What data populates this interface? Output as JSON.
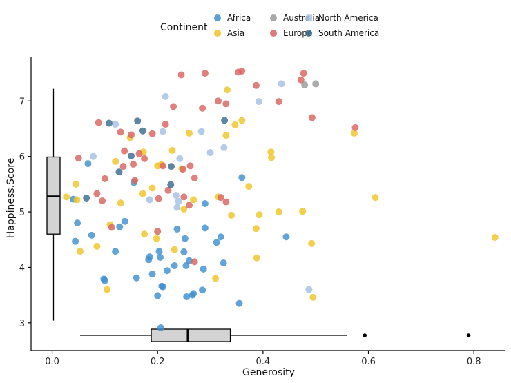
{
  "chart_data": {
    "type": "scatter",
    "title": "",
    "xlabel": "Generosity",
    "ylabel": "Happiness.Score",
    "xlim": [
      -0.04,
      0.86
    ],
    "ylim": [
      2.5,
      7.8
    ],
    "xticks": [
      0.0,
      0.2,
      0.4,
      0.6,
      0.8
    ],
    "xtick_labels": [
      "0.0",
      "0.2",
      "0.4",
      "0.6",
      "0.8"
    ],
    "yticks": [
      3,
      4,
      5,
      6,
      7
    ],
    "ytick_labels": [
      "3",
      "4",
      "5",
      "6",
      "7"
    ],
    "grid": false,
    "legend": {
      "title": "Continent",
      "placement": "top",
      "entries": [
        {
          "name": "Africa",
          "color": "#3F8FCF"
        },
        {
          "name": "Australia",
          "color": "#9A9A9A"
        },
        {
          "name": "North America",
          "color": "#A5C0E4"
        },
        {
          "name": "Asia",
          "color": "#EFC426"
        },
        {
          "name": "Europe",
          "color": "#D9645F"
        },
        {
          "name": "South America",
          "color": "#3B6A8E"
        }
      ]
    },
    "series": [
      {
        "name": "Africa",
        "color": "#3F8FCF",
        "points": [
          [
            0.04,
            5.23
          ],
          [
            0.044,
            4.47
          ],
          [
            0.048,
            4.8
          ],
          [
            0.068,
            5.87
          ],
          [
            0.075,
            4.58
          ],
          [
            0.098,
            3.79
          ],
          [
            0.1,
            3.76
          ],
          [
            0.12,
            4.29
          ],
          [
            0.128,
            4.73
          ],
          [
            0.138,
            4.83
          ],
          [
            0.155,
            5.53
          ],
          [
            0.16,
            3.81
          ],
          [
            0.183,
            4.14
          ],
          [
            0.185,
            4.19
          ],
          [
            0.19,
            3.88
          ],
          [
            0.2,
            3.49
          ],
          [
            0.203,
            4.29
          ],
          [
            0.205,
            4.18
          ],
          [
            0.206,
            2.91
          ],
          [
            0.208,
            3.66
          ],
          [
            0.21,
            3.65
          ],
          [
            0.218,
            3.94
          ],
          [
            0.232,
            4.03
          ],
          [
            0.237,
            4.69
          ],
          [
            0.25,
            4.28
          ],
          [
            0.252,
            4.52
          ],
          [
            0.254,
            4.03
          ],
          [
            0.255,
            3.47
          ],
          [
            0.26,
            4.12
          ],
          [
            0.266,
            3.5
          ],
          [
            0.268,
            3.53
          ],
          [
            0.285,
            3.59
          ],
          [
            0.287,
            3.97
          ],
          [
            0.29,
            5.15
          ],
          [
            0.29,
            4.71
          ],
          [
            0.312,
            4.45
          ],
          [
            0.32,
            4.55
          ],
          [
            0.325,
            4.08
          ],
          [
            0.355,
            3.35
          ],
          [
            0.36,
            5.62
          ],
          [
            0.444,
            4.55
          ]
        ]
      },
      {
        "name": "Australia",
        "color": "#9A9A9A",
        "points": [
          [
            0.479,
            7.29
          ],
          [
            0.5,
            7.31
          ]
        ]
      },
      {
        "name": "North America",
        "color": "#A5C0E4",
        "points": [
          [
            0.078,
            6.0
          ],
          [
            0.12,
            6.58
          ],
          [
            0.185,
            5.22
          ],
          [
            0.21,
            6.45
          ],
          [
            0.215,
            7.08
          ],
          [
            0.235,
            5.3
          ],
          [
            0.237,
            5.08
          ],
          [
            0.24,
            5.19
          ],
          [
            0.242,
            5.96
          ],
          [
            0.283,
            6.45
          ],
          [
            0.3,
            6.07
          ],
          [
            0.326,
            6.16
          ],
          [
            0.392,
            6.99
          ],
          [
            0.435,
            7.31
          ],
          [
            0.487,
            3.6
          ]
        ]
      },
      {
        "name": "Asia",
        "color": "#EFC426",
        "points": [
          [
            0.027,
            5.27
          ],
          [
            0.045,
            5.5
          ],
          [
            0.047,
            5.22
          ],
          [
            0.053,
            4.29
          ],
          [
            0.085,
            4.38
          ],
          [
            0.104,
            3.6
          ],
          [
            0.11,
            4.77
          ],
          [
            0.12,
            5.91
          ],
          [
            0.13,
            5.16
          ],
          [
            0.148,
            6.34
          ],
          [
            0.172,
            5.33
          ],
          [
            0.173,
            6.08
          ],
          [
            0.175,
            4.6
          ],
          [
            0.19,
            5.43
          ],
          [
            0.198,
            4.52
          ],
          [
            0.2,
            5.83
          ],
          [
            0.207,
            5.85
          ],
          [
            0.228,
            6.11
          ],
          [
            0.232,
            4.32
          ],
          [
            0.246,
            5.78
          ],
          [
            0.25,
            5.05
          ],
          [
            0.26,
            6.42
          ],
          [
            0.268,
            5.22
          ],
          [
            0.31,
            3.8
          ],
          [
            0.315,
            5.27
          ],
          [
            0.33,
            6.38
          ],
          [
            0.332,
            7.2
          ],
          [
            0.34,
            4.94
          ],
          [
            0.347,
            6.57
          ],
          [
            0.36,
            6.65
          ],
          [
            0.373,
            5.46
          ],
          [
            0.387,
            4.7
          ],
          [
            0.388,
            4.17
          ],
          [
            0.393,
            4.95
          ],
          [
            0.415,
            6.08
          ],
          [
            0.416,
            5.98
          ],
          [
            0.43,
            5.0
          ],
          [
            0.475,
            5.01
          ],
          [
            0.492,
            4.43
          ],
          [
            0.495,
            3.46
          ],
          [
            0.573,
            6.42
          ],
          [
            0.613,
            5.26
          ],
          [
            0.84,
            4.54
          ]
        ]
      },
      {
        "name": "Europe",
        "color": "#D9645F",
        "points": [
          [
            0.05,
            5.97
          ],
          [
            0.085,
            5.33
          ],
          [
            0.088,
            6.61
          ],
          [
            0.095,
            5.2
          ],
          [
            0.1,
            5.6
          ],
          [
            0.113,
            4.72
          ],
          [
            0.13,
            6.44
          ],
          [
            0.135,
            5.82
          ],
          [
            0.137,
            6.1
          ],
          [
            0.15,
            6.39
          ],
          [
            0.154,
            5.86
          ],
          [
            0.157,
            5.57
          ],
          [
            0.165,
            6.05
          ],
          [
            0.175,
            5.96
          ],
          [
            0.19,
            6.41
          ],
          [
            0.2,
            4.65
          ],
          [
            0.202,
            5.24
          ],
          [
            0.21,
            5.83
          ],
          [
            0.215,
            6.58
          ],
          [
            0.22,
            5.39
          ],
          [
            0.23,
            6.9
          ],
          [
            0.245,
            7.47
          ],
          [
            0.248,
            5.77
          ],
          [
            0.25,
            5.27
          ],
          [
            0.26,
            5.12
          ],
          [
            0.262,
            5.83
          ],
          [
            0.27,
            4.1
          ],
          [
            0.27,
            5.61
          ],
          [
            0.285,
            6.87
          ],
          [
            0.29,
            7.5
          ],
          [
            0.315,
            7.0
          ],
          [
            0.32,
            5.26
          ],
          [
            0.33,
            6.95
          ],
          [
            0.33,
            5.18
          ],
          [
            0.353,
            7.52
          ],
          [
            0.36,
            7.54
          ],
          [
            0.387,
            7.28
          ],
          [
            0.43,
            6.99
          ],
          [
            0.472,
            7.38
          ],
          [
            0.477,
            7.5
          ],
          [
            0.493,
            6.7
          ],
          [
            0.575,
            6.52
          ]
        ]
      },
      {
        "name": "South America",
        "color": "#3B6A8E",
        "points": [
          [
            0.065,
            5.25
          ],
          [
            0.108,
            6.6
          ],
          [
            0.127,
            5.72
          ],
          [
            0.15,
            6.01
          ],
          [
            0.162,
            6.64
          ],
          [
            0.172,
            6.46
          ],
          [
            0.225,
            5.49
          ],
          [
            0.226,
            5.82
          ],
          [
            0.327,
            6.65
          ]
        ]
      }
    ],
    "marginal_boxplots": {
      "x": {
        "min": 0.053,
        "q1": 0.188,
        "median": 0.257,
        "q3": 0.338,
        "max": 0.559,
        "outliers": [
          0.593,
          0.79
        ]
      },
      "y": {
        "min": 3.04,
        "q1": 4.6,
        "median": 5.28,
        "q3": 5.99,
        "max": 7.22,
        "outliers": []
      }
    }
  }
}
